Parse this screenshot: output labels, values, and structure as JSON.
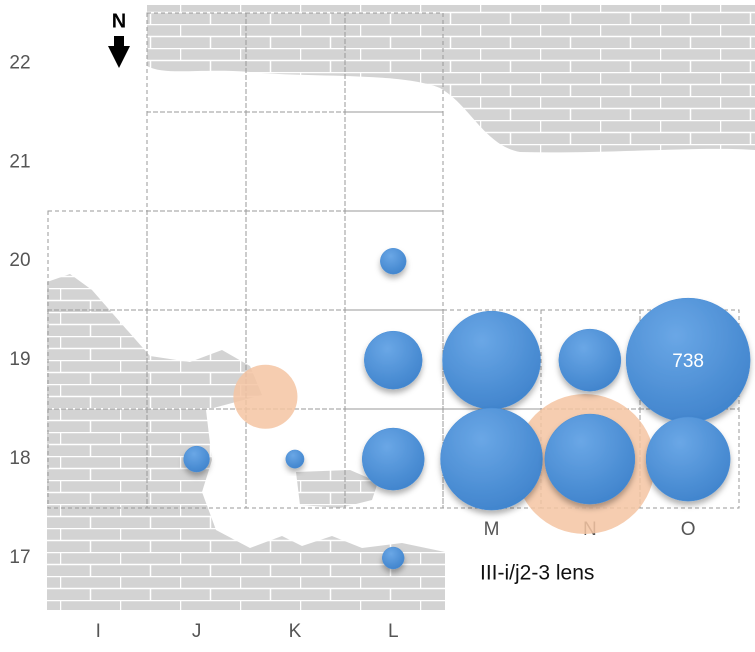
{
  "chart_data": {
    "type": "bubble",
    "annotation": "III-i/j2-3 lens",
    "north_label": "N",
    "xlim": [
      -1,
      6.68
    ],
    "xticks": [
      {
        "value": 0,
        "label": "I"
      },
      {
        "value": 1,
        "label": "J"
      },
      {
        "value": 2,
        "label": "K"
      },
      {
        "value": 3,
        "label": "L"
      }
    ],
    "inner_xticks": [
      {
        "value": 4,
        "label": "M"
      },
      {
        "value": 5,
        "label": "N"
      },
      {
        "value": 6,
        "label": "O"
      }
    ],
    "ylim": [
      16.05,
      22.64
    ],
    "yticks": [
      17,
      18,
      19,
      20,
      21,
      22
    ],
    "series": [
      {
        "color": "#4a8ed6",
        "x": [
          3,
          3,
          4,
          5,
          6,
          1,
          2,
          3,
          4,
          5,
          6,
          3
        ],
        "y": [
          20,
          19,
          19,
          19,
          19,
          18,
          18,
          18,
          18,
          18,
          18,
          17
        ],
        "sizes": [
          32,
          161,
          461,
          185,
          738,
          32,
          16,
          185,
          499,
          389,
          339,
          23
        ],
        "label_shown": [
          false,
          false,
          false,
          false,
          true,
          false,
          false,
          false,
          false,
          false,
          false,
          false
        ]
      },
      {
        "color": "#f5c4a2",
        "x": [
          1.7,
          4.95
        ],
        "y": [
          18.63,
          17.95
        ],
        "sizes": [
          197,
          941
        ],
        "label_shown": [
          false,
          false
        ]
      }
    ]
  }
}
